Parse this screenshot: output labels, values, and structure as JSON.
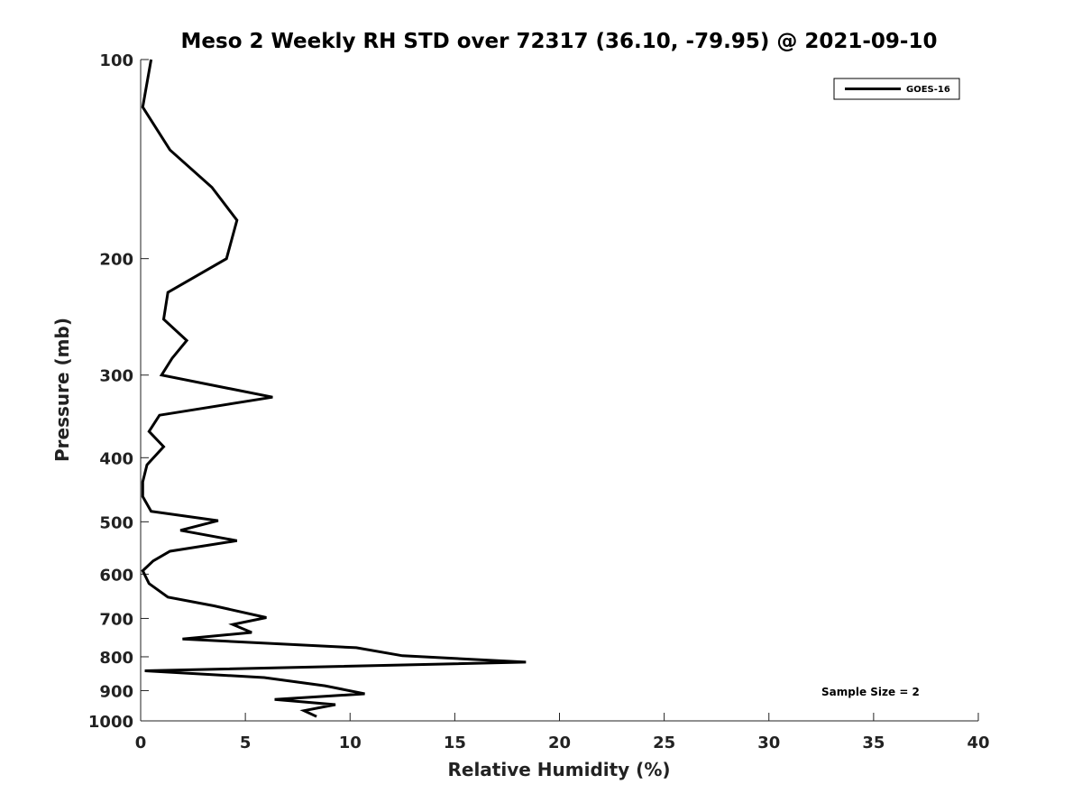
{
  "chart_data": {
    "type": "line",
    "title": "Meso 2 Weekly RH STD over 72317 (36.10, -79.95) @ 2021-09-10",
    "xlabel": "Relative Humidity (%)",
    "ylabel": "Pressure (mb)",
    "xlim": [
      0,
      40
    ],
    "ylim": [
      100,
      1000
    ],
    "y_scale": "log",
    "y_reversed": true,
    "grid": false,
    "legend_position": "top-right",
    "xticks": [
      "0",
      "5",
      "10",
      "15",
      "20",
      "25",
      "30",
      "35",
      "40"
    ],
    "xtick_values": [
      0,
      5,
      10,
      15,
      20,
      25,
      30,
      35,
      40
    ],
    "yticks": [
      "100",
      "200",
      "300",
      "400",
      "500",
      "600",
      "700",
      "800",
      "900",
      "1000"
    ],
    "ytick_values": [
      100,
      200,
      300,
      400,
      500,
      600,
      700,
      800,
      900,
      1000
    ],
    "series": [
      {
        "name": "GOES-16",
        "color": "#000000",
        "x": [
          0.5,
          0.1,
          1.4,
          3.4,
          4.6,
          4.1,
          1.3,
          1.1,
          2.2,
          1.5,
          1.0,
          6.3,
          0.9,
          0.4,
          1.1,
          0.3,
          0.1,
          0.1,
          0.5,
          3.7,
          1.9,
          4.6,
          1.4,
          0.6,
          0.1,
          0.4,
          1.3,
          3.5,
          6.0,
          4.4,
          5.3,
          2.0,
          10.3,
          12.5,
          18.4,
          0.2,
          5.9,
          8.8,
          10.7,
          6.4,
          9.3,
          7.8,
          8.4
        ],
        "y": [
          100,
          118,
          137,
          156,
          175,
          200,
          225,
          247,
          266,
          283,
          300,
          324,
          345,
          365,
          385,
          410,
          435,
          458,
          482,
          498,
          515,
          534,
          554,
          573,
          593,
          620,
          650,
          670,
          698,
          715,
          735,
          752,
          775,
          797,
          815,
          840,
          860,
          885,
          910,
          928,
          945,
          965,
          985
        ]
      }
    ],
    "annotation": "Sample Size = 2"
  }
}
